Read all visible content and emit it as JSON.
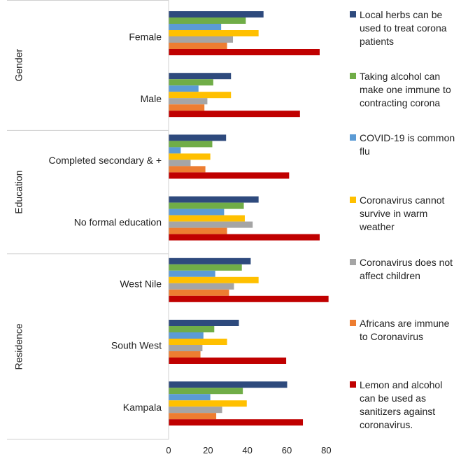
{
  "chart_data": {
    "type": "bar",
    "orientation": "horizontal",
    "xlim": [
      0,
      80
    ],
    "x_ticks": [
      "0",
      "20",
      "40",
      "60",
      "80"
    ],
    "groups": [
      {
        "label": "Gender",
        "categories": [
          "Female",
          "Male"
        ]
      },
      {
        "label": "Education",
        "categories": [
          "Completed secondary & +",
          "No formal education"
        ]
      },
      {
        "label": "Residence",
        "categories": [
          "West Nile",
          "South West",
          "Kampala"
        ]
      }
    ],
    "categories": [
      "Female",
      "Male",
      "Completed secondary & +",
      "No formal education",
      "West Nile",
      "South West",
      "Kampala"
    ],
    "legend_position": "right",
    "grid": false,
    "series": [
      {
        "name": "Local herbs can be used to treat corona patients",
        "color": "#2e4a7d",
        "values": [
          48,
          31.5,
          29,
          45.5,
          41.5,
          35.5,
          60
        ]
      },
      {
        "name": "Taking alcohol can make one immune to contracting corona",
        "color": "#70ad47",
        "values": [
          39,
          22.5,
          22,
          38,
          37,
          23,
          37.5
        ]
      },
      {
        "name": "COVID-19 is common flu",
        "color": "#5b9bd5",
        "values": [
          26.5,
          15,
          6,
          28,
          23.5,
          17.5,
          21
        ]
      },
      {
        "name": "Coronavirus cannot survive in warm weather",
        "color": "#ffc000",
        "values": [
          45.5,
          31.5,
          21,
          38.5,
          45.5,
          29.5,
          39.5
        ]
      },
      {
        "name": "Coronavirus does not affect children",
        "color": "#a5a5a5",
        "values": [
          32.5,
          19.5,
          11,
          42.5,
          33,
          17,
          27
        ]
      },
      {
        "name": "Africans are immune to Coronavirus",
        "color": "#ed7d31",
        "values": [
          29.5,
          18,
          18.5,
          29.5,
          30.5,
          16,
          24
        ]
      },
      {
        "name": "Lemon and alcohol can be used as sanitizers against coronavirus.",
        "color": "#c00000",
        "values": [
          76.5,
          66.5,
          61,
          76.5,
          81,
          59.5,
          68
        ]
      }
    ]
  }
}
